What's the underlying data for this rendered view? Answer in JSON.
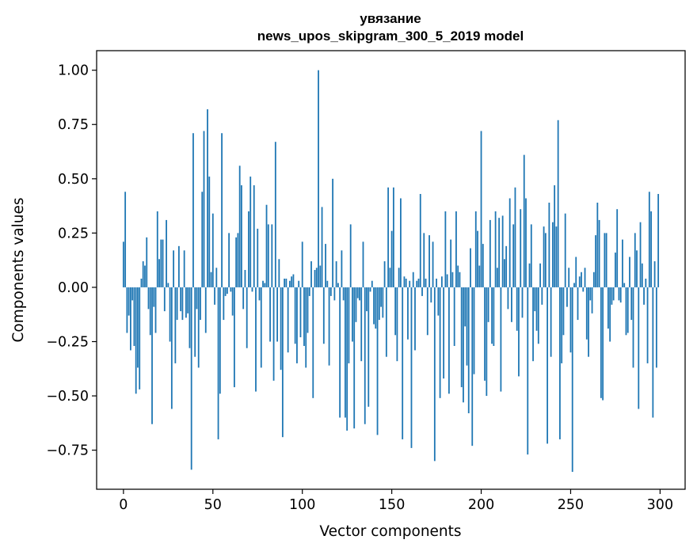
{
  "chart_data": {
    "type": "bar",
    "title": "увязание",
    "subtitle": "news_upos_skipgram_300_5_2019 model",
    "xlabel": "Vector components",
    "ylabel": "Components values",
    "xlim": [
      -15,
      314
    ],
    "ylim": [
      -0.93,
      1.09
    ],
    "xticks": [
      0,
      50,
      100,
      150,
      200,
      250,
      300
    ],
    "xtick_labels": [
      "0",
      "50",
      "100",
      "150",
      "200",
      "250",
      "300"
    ],
    "yticks": [
      -0.75,
      -0.5,
      -0.25,
      0.0,
      0.25,
      0.5,
      0.75,
      1.0
    ],
    "ytick_labels": [
      "−0.75",
      "−0.50",
      "−0.25",
      "0.00",
      "0.25",
      "0.50",
      "0.75",
      "1.00"
    ],
    "grid": false,
    "bar_color": "#1f77b4",
    "values": [
      0.21,
      0.44,
      -0.21,
      -0.13,
      -0.29,
      -0.06,
      -0.27,
      -0.49,
      -0.37,
      -0.47,
      0.04,
      0.12,
      0.1,
      0.23,
      -0.1,
      -0.22,
      -0.63,
      -0.09,
      -0.21,
      0.35,
      0.13,
      0.22,
      0.22,
      -0.11,
      0.31,
      0.02,
      -0.25,
      -0.56,
      0.17,
      -0.35,
      -0.15,
      0.19,
      -0.11,
      -0.15,
      0.17,
      -0.14,
      -0.12,
      -0.28,
      -0.84,
      0.71,
      -0.32,
      -0.1,
      -0.37,
      -0.15,
      0.44,
      0.72,
      -0.21,
      0.82,
      0.51,
      0.07,
      0.34,
      -0.08,
      0.09,
      -0.7,
      -0.49,
      0.71,
      -0.15,
      -0.04,
      -0.03,
      0.25,
      -0.02,
      -0.13,
      -0.46,
      0.23,
      0.25,
      0.56,
      0.47,
      -0.1,
      0.08,
      -0.28,
      0.35,
      0.51,
      -0.02,
      0.47,
      -0.48,
      0.27,
      -0.06,
      -0.37,
      0.03,
      0.02,
      0.38,
      0.29,
      -0.25,
      0.29,
      -0.43,
      0.67,
      -0.25,
      0.13,
      -0.38,
      -0.69,
      0.04,
      0.04,
      -0.3,
      0.03,
      0.05,
      0.06,
      -0.26,
      -0.35,
      0.03,
      -0.23,
      0.21,
      -0.27,
      -0.37,
      -0.21,
      -0.04,
      0.12,
      -0.51,
      0.08,
      0.09,
      1.0,
      0.1,
      0.37,
      -0.26,
      0.2,
      0.03,
      -0.36,
      -0.04,
      0.5,
      -0.06,
      0.12,
      0.02,
      -0.6,
      0.17,
      -0.06,
      -0.6,
      -0.66,
      -0.35,
      0.29,
      -0.25,
      -0.65,
      -0.16,
      -0.05,
      -0.06,
      -0.34,
      0.21,
      -0.63,
      -0.11,
      -0.55,
      -0.02,
      0.03,
      -0.17,
      -0.19,
      -0.68,
      -0.15,
      -0.09,
      -0.14,
      0.12,
      -0.32,
      0.46,
      0.09,
      0.26,
      0.46,
      -0.22,
      -0.34,
      0.09,
      0.41,
      -0.7,
      0.05,
      0.04,
      -0.24,
      0.03,
      -0.74,
      0.07,
      -0.29,
      0.03,
      0.04,
      0.43,
      -0.04,
      0.25,
      0.04,
      -0.22,
      0.24,
      -0.07,
      0.21,
      -0.8,
      0.04,
      -0.13,
      -0.51,
      0.05,
      -0.42,
      0.35,
      0.06,
      -0.49,
      0.22,
      0.07,
      -0.27,
      0.35,
      0.1,
      0.07,
      -0.46,
      -0.53,
      -0.18,
      -0.36,
      -0.58,
      0.18,
      -0.73,
      -0.4,
      0.35,
      0.26,
      0.1,
      0.72,
      0.2,
      -0.43,
      -0.5,
      -0.16,
      0.31,
      -0.26,
      -0.27,
      0.35,
      0.09,
      0.32,
      -0.48,
      0.33,
      0.13,
      0.19,
      -0.1,
      0.41,
      -0.16,
      0.29,
      0.46,
      -0.2,
      -0.41,
      0.36,
      -0.14,
      0.61,
      0.41,
      -0.77,
      0.11,
      0.29,
      -0.34,
      -0.11,
      -0.2,
      -0.26,
      0.11,
      -0.08,
      0.28,
      0.25,
      -0.72,
      0.39,
      -0.32,
      0.3,
      0.47,
      0.28,
      0.77,
      -0.7,
      -0.35,
      -0.22,
      0.34,
      -0.09,
      0.09,
      -0.3,
      -0.85,
      0.02,
      0.14,
      -0.15,
      0.05,
      0.07,
      -0.02,
      0.09,
      -0.24,
      -0.32,
      -0.06,
      -0.12,
      0.07,
      0.24,
      0.39,
      0.31,
      -0.51,
      -0.52,
      0.25,
      0.25,
      -0.19,
      -0.25,
      -0.08,
      -0.06,
      0.16,
      0.36,
      -0.06,
      -0.07,
      0.22,
      0.02,
      -0.22,
      -0.21,
      0.14,
      -0.15,
      -0.37,
      0.25,
      0.17,
      -0.56,
      0.3,
      0.11,
      -0.08,
      0.04,
      -0.35,
      0.44,
      0.35,
      -0.6,
      0.12,
      -0.37,
      0.43
    ]
  }
}
